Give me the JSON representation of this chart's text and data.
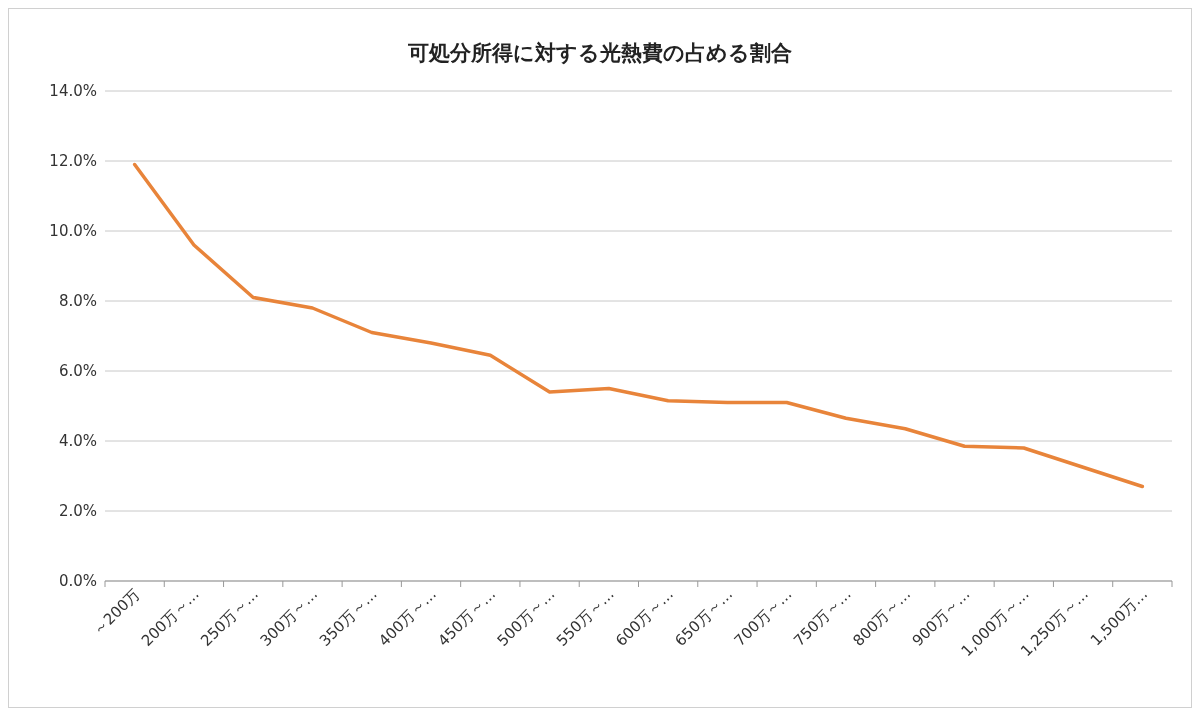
{
  "chart_data": {
    "type": "line",
    "title": "可処分所得に対する光熱費の占める割合",
    "categories": [
      "～200万",
      "200万～…",
      "250万～…",
      "300万～…",
      "350万～…",
      "400万～…",
      "450万～…",
      "500万～…",
      "550万～…",
      "600万～…",
      "650万～…",
      "700万～…",
      "750万～…",
      "800万～…",
      "900万～…",
      "1,000万～…",
      "1,250万～…",
      "1,500万…"
    ],
    "series": [
      {
        "color": "#e8843a",
        "values": [
          11.9,
          9.6,
          8.1,
          7.8,
          7.1,
          6.8,
          6.45,
          5.4,
          5.5,
          5.15,
          5.1,
          5.1,
          4.65,
          4.35,
          3.85,
          3.8,
          3.25,
          2.7
        ]
      }
    ],
    "ylim": [
      0,
      14
    ],
    "yticks": [
      {
        "value": 0,
        "label": "0.0%"
      },
      {
        "value": 2,
        "label": "2.0%"
      },
      {
        "value": 4,
        "label": "4.0%"
      },
      {
        "value": 6,
        "label": "6.0%"
      },
      {
        "value": 8,
        "label": "8.0%"
      },
      {
        "value": 10,
        "label": "10.0%"
      },
      {
        "value": 12,
        "label": "12.0%"
      },
      {
        "value": 14,
        "label": "14.0%"
      }
    ],
    "grid": "y",
    "marker": "none",
    "line_style": "solid"
  }
}
